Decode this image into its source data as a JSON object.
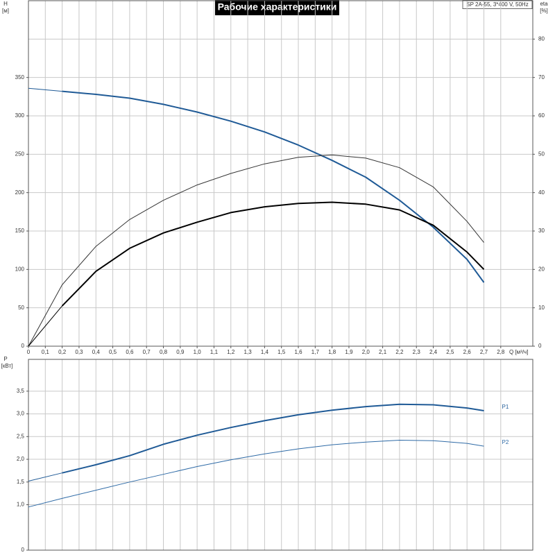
{
  "chart_data": [
    {
      "type": "line",
      "title": "Рабочие характеристики",
      "annotation": "SP 2A-55, 3*400 V, 50Hz",
      "xlabel": "Q [м³/ч]",
      "ylabel": "H",
      "yunit": "[м]",
      "y2label": "eta",
      "y2unit": "[%]",
      "x": [
        0,
        0.2,
        0.4,
        0.6,
        0.8,
        1.0,
        1.2,
        1.4,
        1.6,
        1.8,
        2.0,
        2.2,
        2.4,
        2.6,
        2.7
      ],
      "xlim": [
        0,
        2.99
      ],
      "xticks": [
        0,
        {
          "value": 0.1,
          "label": "0,1"
        },
        {
          "value": 0.2,
          "label": "0,2"
        },
        {
          "value": 0.3,
          "label": "0,3"
        },
        {
          "value": 0.4,
          "label": "0,4"
        },
        {
          "value": 0.5,
          "label": "0,5"
        },
        {
          "value": 0.6,
          "label": "0,6"
        },
        {
          "value": 0.7,
          "label": "0,7"
        },
        {
          "value": 0.8,
          "label": "0,8"
        },
        {
          "value": 0.9,
          "label": "0,9"
        },
        {
          "value": 1.0,
          "label": "1,0"
        },
        {
          "value": 1.1,
          "label": "1,1"
        },
        {
          "value": 1.2,
          "label": "1,2"
        },
        {
          "value": 1.3,
          "label": "1,3"
        },
        {
          "value": 1.4,
          "label": "1,4"
        },
        {
          "value": 1.5,
          "label": "1,5"
        },
        {
          "value": 1.6,
          "label": "1,6"
        },
        {
          "value": 1.7,
          "label": "1,7"
        },
        {
          "value": 1.8,
          "label": "1,8"
        },
        {
          "value": 1.9,
          "label": "1,9"
        },
        {
          "value": 2.0,
          "label": "2,0"
        },
        {
          "value": 2.1,
          "label": "2,1"
        },
        {
          "value": 2.2,
          "label": "2,2"
        },
        {
          "value": 2.3,
          "label": "2,3"
        },
        {
          "value": 2.4,
          "label": "2,4"
        },
        {
          "value": 2.5,
          "label": "2,5"
        },
        {
          "value": 2.6,
          "label": "2,6"
        },
        {
          "value": 2.7,
          "label": "2,7"
        },
        {
          "value": 2.8,
          "label": "2,8"
        }
      ],
      "ylim": [
        0,
        450
      ],
      "yticks": [
        0,
        50,
        100,
        150,
        200,
        250,
        300,
        350
      ],
      "y2lim": [
        0,
        90
      ],
      "y2ticks": [
        0,
        10,
        20,
        30,
        40,
        50,
        60,
        70,
        80
      ],
      "series": [
        {
          "color": "#1f5a96",
          "values": [
            336,
            332,
            328,
            323,
            315,
            305,
            293,
            279,
            262,
            242,
            220,
            190,
            155,
            113,
            83
          ]
        },
        {
          "color": "#333333",
          "axis": "y2",
          "values": [
            0,
            16,
            26,
            33,
            38,
            42,
            45,
            47.5,
            49.2,
            49.8,
            49,
            46.5,
            41.5,
            32.5,
            27
          ]
        },
        {
          "color": "#000000",
          "axis": "y2",
          "values": [
            0,
            10.5,
            19.5,
            25.5,
            29.5,
            32.3,
            34.8,
            36.3,
            37.2,
            37.5,
            37,
            35.5,
            31.5,
            24.5,
            20
          ]
        }
      ]
    },
    {
      "type": "line",
      "ylabel": "P",
      "yunit": "[кВт]",
      "x": [
        0,
        0.2,
        0.4,
        0.6,
        0.8,
        1.0,
        1.2,
        1.4,
        1.6,
        1.8,
        2.0,
        2.2,
        2.4,
        2.6,
        2.7
      ],
      "xlim": [
        0,
        2.99
      ],
      "ylim": [
        0,
        4.2
      ],
      "yticks": [
        0,
        {
          "value": 1.0,
          "label": "1,0"
        },
        {
          "value": 1.5,
          "label": "1,5"
        },
        {
          "value": 2.0,
          "label": "2,0"
        },
        {
          "value": 2.5,
          "label": "2,5"
        },
        {
          "value": 3.0,
          "label": "3,0"
        },
        {
          "value": 3.5,
          "label": "3,5"
        }
      ],
      "series": [
        {
          "name": "P1",
          "color": "#1f5a96",
          "values": [
            1.52,
            1.7,
            1.88,
            2.08,
            2.33,
            2.53,
            2.7,
            2.85,
            2.98,
            3.08,
            3.16,
            3.21,
            3.2,
            3.13,
            3.07
          ]
        },
        {
          "name": "P2",
          "color": "#2e6aa6",
          "values": [
            0.95,
            1.14,
            1.32,
            1.5,
            1.67,
            1.84,
            1.99,
            2.12,
            2.23,
            2.32,
            2.38,
            2.42,
            2.41,
            2.35,
            2.29
          ]
        }
      ]
    }
  ]
}
